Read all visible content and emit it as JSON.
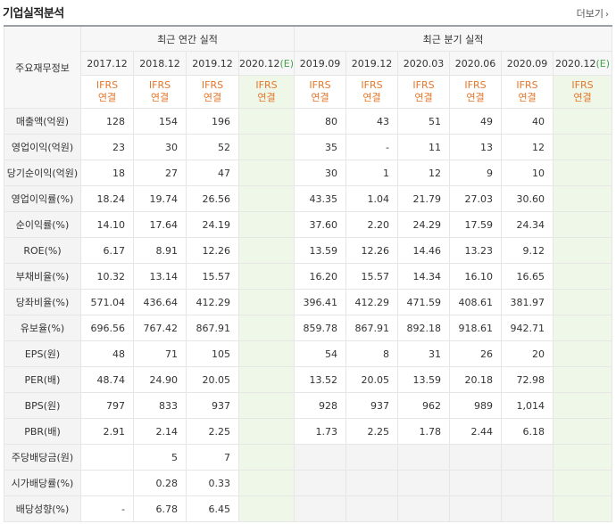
{
  "header": {
    "title": "기업실적분석",
    "more_label": "더보기"
  },
  "table": {
    "corner_label": "주요재무정보",
    "group_annual": "최근 연간 실적",
    "group_quarterly": "최근 분기 실적",
    "annual_periods": [
      "2017.12",
      "2018.12",
      "2019.12"
    ],
    "annual_est": {
      "base": "2020.12",
      "mark": "(E)"
    },
    "quarter_periods": [
      "2019.09",
      "2019.12",
      "2020.03",
      "2020.06",
      "2020.09"
    ],
    "quarter_est": {
      "base": "2020.12",
      "mark": "(E)"
    },
    "ifrs_top": "IFRS",
    "ifrs_bottom": "연결",
    "rows": [
      {
        "label": "매출액(억원)",
        "annual": [
          "128",
          "154",
          "196",
          ""
        ],
        "quarter": [
          "80",
          "43",
          "51",
          "49",
          "40",
          ""
        ]
      },
      {
        "label": "영업이익(억원)",
        "annual": [
          "23",
          "30",
          "52",
          ""
        ],
        "quarter": [
          "35",
          "-",
          "11",
          "13",
          "12",
          ""
        ]
      },
      {
        "label": "당기순이익(억원)",
        "annual": [
          "18",
          "27",
          "47",
          ""
        ],
        "quarter": [
          "30",
          "1",
          "12",
          "9",
          "10",
          ""
        ]
      },
      {
        "label": "영업이익률(%)",
        "annual": [
          "18.24",
          "19.74",
          "26.56",
          ""
        ],
        "quarter": [
          "43.35",
          "1.04",
          "21.79",
          "27.03",
          "30.60",
          ""
        ]
      },
      {
        "label": "순이익률(%)",
        "annual": [
          "14.10",
          "17.64",
          "24.19",
          ""
        ],
        "quarter": [
          "37.60",
          "2.20",
          "24.29",
          "17.59",
          "24.34",
          ""
        ]
      },
      {
        "label": "ROE(%)",
        "annual": [
          "6.17",
          "8.91",
          "12.26",
          ""
        ],
        "quarter": [
          "13.59",
          "12.26",
          "14.46",
          "13.23",
          "9.12",
          ""
        ]
      },
      {
        "label": "부채비율(%)",
        "annual": [
          "10.32",
          "13.14",
          "15.57",
          ""
        ],
        "quarter": [
          "16.20",
          "15.57",
          "14.34",
          "16.10",
          "16.65",
          ""
        ]
      },
      {
        "label": "당좌비율(%)",
        "annual": [
          "571.04",
          "436.64",
          "412.29",
          ""
        ],
        "quarter": [
          "396.41",
          "412.29",
          "471.59",
          "408.61",
          "381.97",
          ""
        ]
      },
      {
        "label": "유보율(%)",
        "annual": [
          "696.56",
          "767.42",
          "867.91",
          ""
        ],
        "quarter": [
          "859.78",
          "867.91",
          "892.18",
          "918.61",
          "942.71",
          ""
        ]
      },
      {
        "label": "EPS(원)",
        "annual": [
          "48",
          "71",
          "105",
          ""
        ],
        "quarter": [
          "54",
          "8",
          "31",
          "26",
          "20",
          ""
        ]
      },
      {
        "label": "PER(배)",
        "annual": [
          "48.74",
          "24.90",
          "20.05",
          ""
        ],
        "quarter": [
          "13.52",
          "20.05",
          "13.59",
          "20.18",
          "72.98",
          ""
        ]
      },
      {
        "label": "BPS(원)",
        "annual": [
          "797",
          "833",
          "937",
          ""
        ],
        "quarter": [
          "928",
          "937",
          "962",
          "989",
          "1,014",
          ""
        ]
      },
      {
        "label": "PBR(배)",
        "annual": [
          "2.91",
          "2.14",
          "2.25",
          ""
        ],
        "quarter": [
          "1.73",
          "2.25",
          "1.78",
          "2.44",
          "6.18",
          ""
        ]
      },
      {
        "label": "주당배당금(원)",
        "annual": [
          "",
          "5",
          "7",
          ""
        ],
        "quarter": [
          "",
          "",
          "",
          "",
          "",
          ""
        ]
      },
      {
        "label": "시가배당률(%)",
        "annual": [
          "",
          "0.28",
          "0.33",
          ""
        ],
        "quarter": [
          "",
          "",
          "",
          "",
          "",
          ""
        ]
      },
      {
        "label": "배당성향(%)",
        "annual": [
          "-",
          "6.78",
          "6.45",
          ""
        ],
        "quarter": [
          "",
          "",
          "",
          "",
          "",
          ""
        ]
      }
    ]
  }
}
